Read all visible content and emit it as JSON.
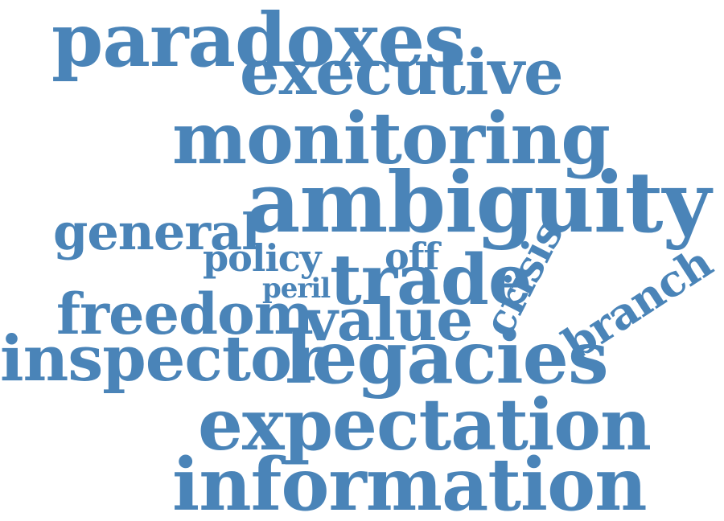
{
  "word_cloud": {
    "color": "#4a84b8",
    "words": [
      {
        "text": "paradoxes"
      },
      {
        "text": "executive"
      },
      {
        "text": "monitoring"
      },
      {
        "text": "ambiguity"
      },
      {
        "text": "general"
      },
      {
        "text": "policy"
      },
      {
        "text": "off"
      },
      {
        "text": "peril"
      },
      {
        "text": "trade"
      },
      {
        "text": "crisis"
      },
      {
        "text": "branch"
      },
      {
        "text": "freedom"
      },
      {
        "text": "value"
      },
      {
        "text": "inspector"
      },
      {
        "text": "legacies"
      },
      {
        "text": "expectation"
      },
      {
        "text": "information"
      }
    ]
  }
}
